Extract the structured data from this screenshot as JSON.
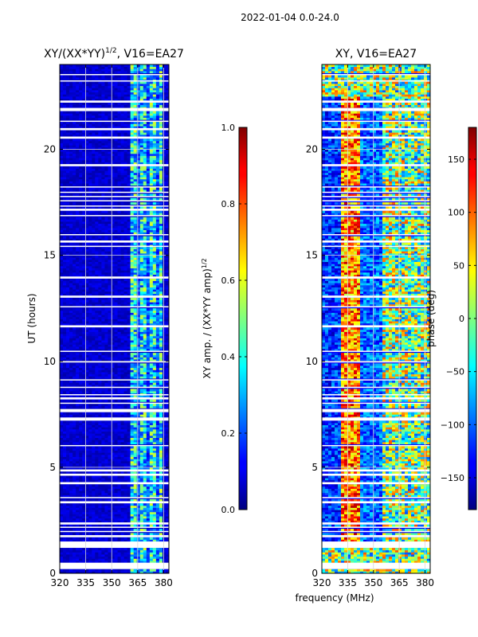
{
  "figure": {
    "suptitle": "2022-01-04 0.0-24.0",
    "xlabel": "frequency (MHz)"
  },
  "colors": {
    "background": "#ffffff",
    "gap": "#ffffff",
    "grid": "#d8d8d8"
  },
  "chart_data": [
    {
      "type": "heatmap",
      "title_main": "XY/(XX*YY)",
      "title_sup": "1/2",
      "title_rest": ", V16=EA27",
      "xlabel": "",
      "ylabel": "UT (hours)",
      "xlim": [
        320,
        383
      ],
      "ylim": [
        0,
        24
      ],
      "xticks": [
        320,
        335,
        350,
        365,
        380
      ],
      "yticks": [
        0,
        5,
        10,
        15,
        20
      ],
      "grid": true,
      "band_edges_mhz": [
        360,
        380
      ],
      "colorbar": {
        "label_main": "XY amp. / (XX*YY amp)",
        "label_sup": "1/2",
        "range": [
          0.0,
          1.0
        ],
        "ticks": [
          "0.0",
          "0.2",
          "0.4",
          "0.6",
          "0.8",
          "1.0"
        ],
        "colormap": "jet"
      }
    },
    {
      "type": "heatmap",
      "title_main": "XY, V16=EA27",
      "title_sup": "",
      "title_rest": "",
      "xlabel": "frequency (MHz)",
      "ylabel": "",
      "xlim": [
        320,
        383
      ],
      "ylim": [
        0,
        24
      ],
      "xticks": [
        320,
        335,
        350,
        365,
        380
      ],
      "yticks": [
        0,
        5,
        10,
        15,
        20
      ],
      "grid": true,
      "band_edges_mhz": [
        360,
        380
      ],
      "colorbar": {
        "label_main": "phase (deg)",
        "label_sup": "",
        "range": [
          -180,
          180
        ],
        "ticks": [
          "−150",
          "−100",
          "−50",
          "0",
          "50",
          "100",
          "150"
        ],
        "colormap": "jet"
      }
    }
  ],
  "flagged_time_gaps_hours": [
    [
      0.2,
      0.5
    ],
    [
      1.2,
      1.5
    ],
    [
      1.7,
      1.8
    ],
    [
      1.95,
      2.0
    ],
    [
      2.15,
      2.2
    ],
    [
      2.3,
      2.4
    ],
    [
      3.3,
      3.4
    ],
    [
      3.55,
      3.6
    ],
    [
      4.2,
      4.3
    ],
    [
      4.6,
      4.7
    ],
    [
      4.8,
      4.9
    ],
    [
      6.0,
      6.05
    ],
    [
      7.2,
      7.35
    ],
    [
      7.6,
      7.75
    ],
    [
      8.0,
      8.05
    ],
    [
      8.2,
      8.3
    ],
    [
      8.4,
      8.45
    ],
    [
      8.75,
      8.8
    ],
    [
      9.1,
      9.15
    ],
    [
      9.95,
      10.0
    ],
    [
      10.45,
      10.5
    ],
    [
      11.6,
      11.7
    ],
    [
      12.55,
      12.6
    ],
    [
      13.0,
      13.1
    ],
    [
      13.9,
      14.0
    ],
    [
      15.4,
      15.45
    ],
    [
      15.6,
      15.7
    ],
    [
      15.95,
      16.0
    ],
    [
      16.85,
      16.9
    ],
    [
      17.1,
      17.2
    ],
    [
      17.3,
      17.35
    ],
    [
      17.55,
      17.6
    ],
    [
      17.75,
      17.8
    ],
    [
      17.95,
      18.0
    ],
    [
      18.2,
      18.25
    ],
    [
      19.2,
      19.3
    ],
    [
      20.5,
      20.6
    ],
    [
      20.9,
      21.0
    ],
    [
      21.3,
      21.35
    ],
    [
      21.8,
      21.95
    ],
    [
      22.2,
      22.3
    ],
    [
      23.2,
      23.25
    ],
    [
      23.5,
      23.55
    ]
  ]
}
